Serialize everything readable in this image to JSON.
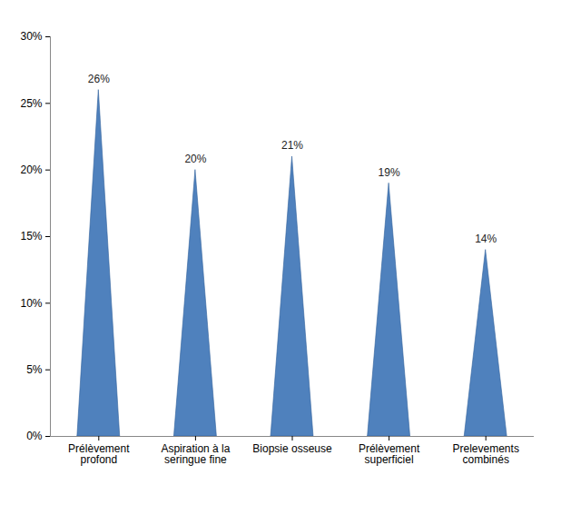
{
  "chart_data": {
    "type": "bar",
    "categories": [
      "Prélèvement profond",
      "Aspiration à la seringue fine",
      "Biopsie osseuse",
      "Prélèvement superficiel",
      "Prelevements combinés"
    ],
    "values": [
      26,
      20,
      21,
      19,
      14
    ],
    "value_labels": [
      "26%",
      "20%",
      "21%",
      "19%",
      "14%"
    ],
    "color": "#4f81bd",
    "ylim": [
      0,
      30
    ],
    "yticks": [
      {
        "value": 0,
        "label": "0%"
      },
      {
        "value": 5,
        "label": "5%"
      },
      {
        "value": 10,
        "label": "10%"
      },
      {
        "value": 15,
        "label": "15%"
      },
      {
        "value": 20,
        "label": "20%"
      },
      {
        "value": 25,
        "label": "25%"
      },
      {
        "value": 30,
        "label": "30%"
      }
    ],
    "grid": false,
    "data_labels": true
  }
}
